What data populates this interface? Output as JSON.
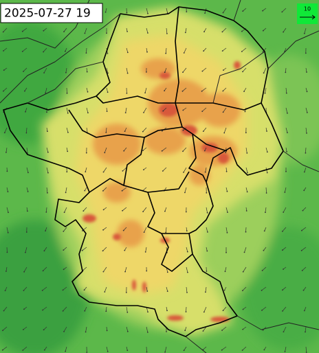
{
  "map": {
    "timestamp": "2025-07-27 19",
    "wind_scale_label": "10"
  }
}
